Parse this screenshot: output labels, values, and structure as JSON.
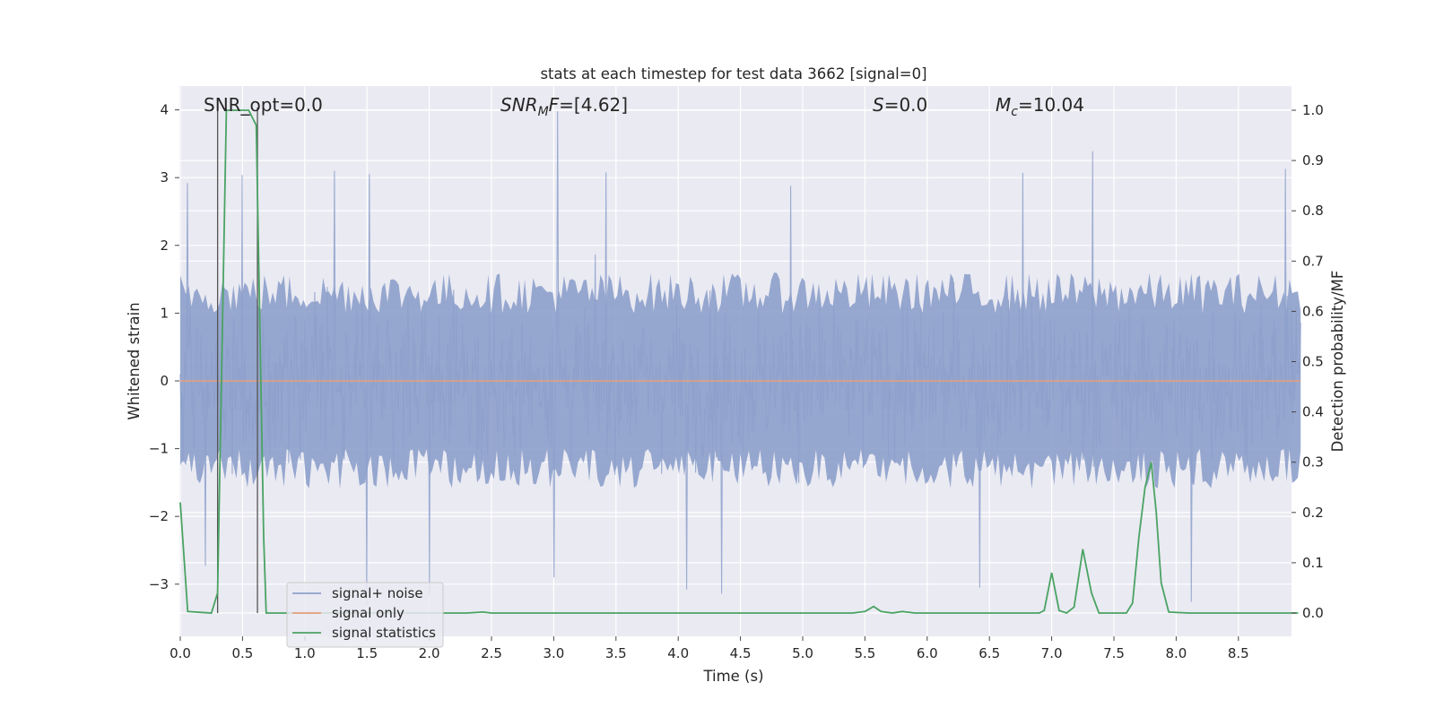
{
  "chart_data": {
    "type": "line",
    "title": "stats at each timestep for test data 3662 [signal=0]",
    "xlabel": "Time (s)",
    "ylabel_left": "Whitened strain",
    "ylabel_right": "Detection probability/MF",
    "xlim": [
      0.0,
      9.0
    ],
    "ylim_left": [
      -3.75,
      4.35
    ],
    "ylim_right": [
      -0.05,
      1.04
    ],
    "x_ticks": [
      "0.0",
      "0.5",
      "1.0",
      "1.5",
      "2.0",
      "2.5",
      "3.0",
      "3.5",
      "4.0",
      "4.5",
      "5.0",
      "5.5",
      "6.0",
      "6.5",
      "7.0",
      "7.5",
      "8.0",
      "8.5"
    ],
    "y_ticks_left": [
      "4",
      "3",
      "2",
      "1",
      "0",
      "−1",
      "−2",
      "−3"
    ],
    "y_ticks_right": [
      "1.0",
      "0.9",
      "0.8",
      "0.7",
      "0.6",
      "0.5",
      "0.4",
      "0.3",
      "0.2",
      "0.1",
      "0.0"
    ],
    "grid": true,
    "legend_position": "lower-left",
    "annotations": {
      "snr_opt": "SNR_opt=0.0",
      "snr_mf_italic": "SNR",
      "snr_mf_sub": "M",
      "snr_mf_italic2": "F",
      "snr_mf_value": "=[4.62]",
      "s_italic": "S",
      "s_value": "=0.0",
      "mc_italic": "M",
      "mc_sub": "c",
      "mc_value": "=10.04"
    },
    "vertical_markers": [
      0.3,
      0.62
    ],
    "series": [
      {
        "name": "signal+ noise",
        "color": "#8da0cb",
        "description": "whitened noise samples, roughly uniform amplitude",
        "peaks": [
          {
            "x": 0.06,
            "y": 2.92
          },
          {
            "x": 0.5,
            "y": 3.04
          },
          {
            "x": 1.24,
            "y": 3.1
          },
          {
            "x": 1.52,
            "y": 3.05
          },
          {
            "x": 3.03,
            "y": 3.98
          },
          {
            "x": 3.42,
            "y": 3.08
          },
          {
            "x": 4.9,
            "y": 2.88
          },
          {
            "x": 6.77,
            "y": 3.07
          },
          {
            "x": 7.33,
            "y": 3.39
          },
          {
            "x": 8.88,
            "y": 3.13
          }
        ],
        "troughs": [
          {
            "x": 0.2,
            "y": -2.73
          },
          {
            "x": 1.5,
            "y": -3.32
          },
          {
            "x": 2.0,
            "y": -3.18
          },
          {
            "x": 3.0,
            "y": -2.9
          },
          {
            "x": 4.07,
            "y": -3.08
          },
          {
            "x": 4.35,
            "y": -3.14
          },
          {
            "x": 6.42,
            "y": -3.05
          },
          {
            "x": 8.12,
            "y": -3.26
          }
        ]
      },
      {
        "name": "signal only",
        "color": "#e5a07a",
        "x": [
          0.0,
          9.0
        ],
        "y": [
          0.0,
          0.0
        ]
      },
      {
        "name": "signal statistics",
        "color": "#4aa363",
        "axis": "right",
        "x": [
          0.0,
          0.06,
          0.25,
          0.3,
          0.37,
          0.55,
          0.61,
          0.67,
          0.69,
          2.3,
          2.43,
          2.5,
          5.4,
          5.5,
          5.57,
          5.63,
          5.72,
          5.8,
          5.9,
          6.9,
          6.94,
          7.0,
          7.06,
          7.12,
          7.18,
          7.25,
          7.32,
          7.38,
          7.45,
          7.6,
          7.65,
          7.7,
          7.75,
          7.8,
          7.84,
          7.88,
          7.94,
          8.1,
          8.98
        ],
        "y": [
          0.22,
          0.003,
          0.0,
          0.04,
          1.0,
          1.0,
          0.97,
          0.15,
          0.0,
          0.0,
          0.002,
          0.0,
          0.0,
          0.003,
          0.013,
          0.003,
          0.0,
          0.003,
          0.0,
          0.0,
          0.005,
          0.08,
          0.005,
          0.0,
          0.012,
          0.127,
          0.04,
          0.0,
          0.0,
          0.0,
          0.02,
          0.15,
          0.25,
          0.3,
          0.2,
          0.06,
          0.002,
          0.0,
          0.0
        ]
      }
    ]
  }
}
